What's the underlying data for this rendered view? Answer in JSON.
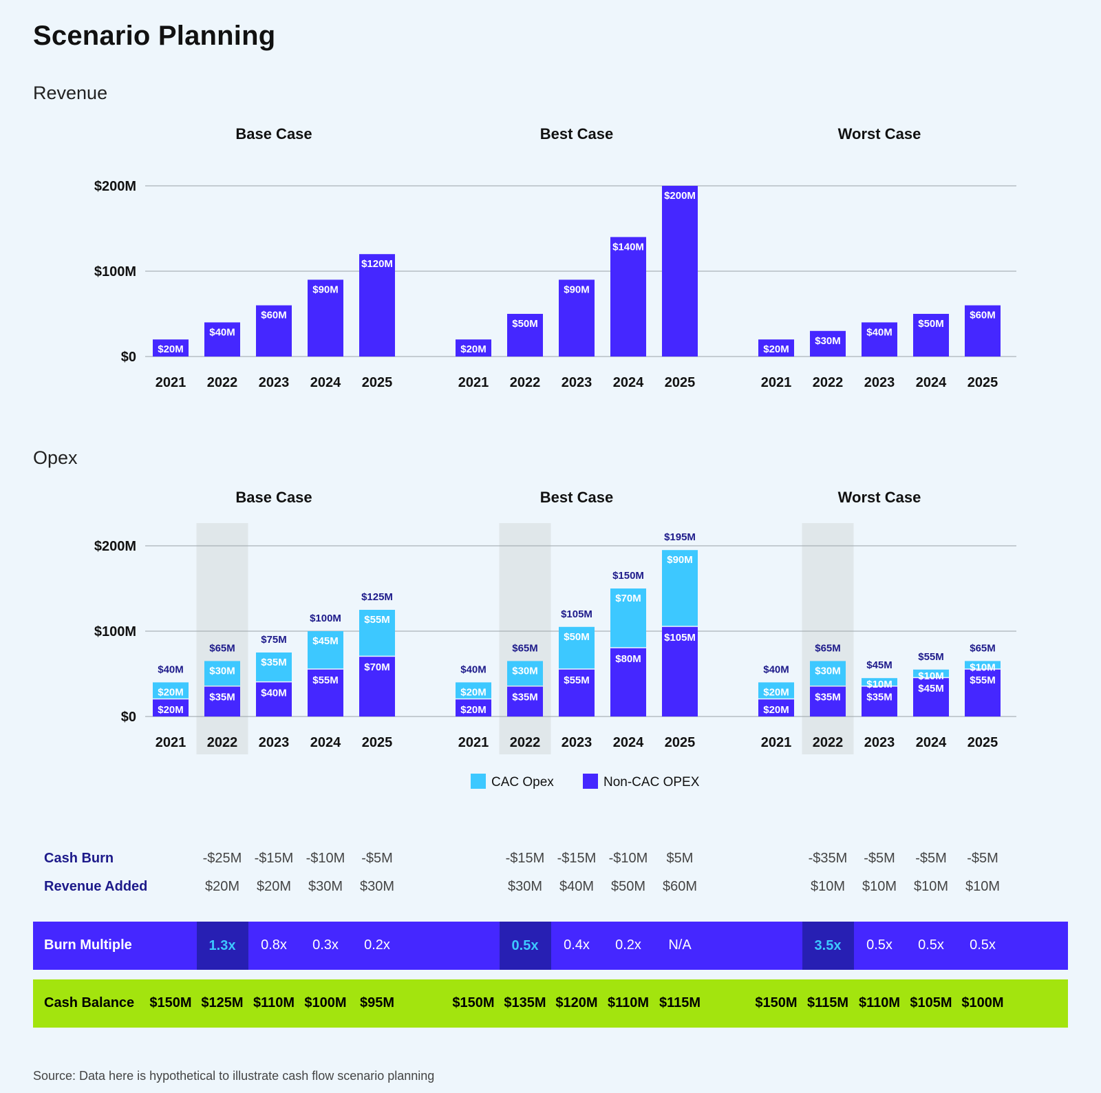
{
  "title": "Scenario Planning",
  "source": "Source: Data here is hypothetical to illustrate cash flow scenario planning",
  "colors": {
    "non_cac": "#4527ff",
    "cac": "#3dc8ff",
    "highlight_col": "#e0e7ea",
    "burn_row": "#4527ff",
    "burn_hl": "#271fb3",
    "balance_row": "#a3e40e"
  },
  "chart_data": [
    {
      "type": "bar",
      "title": "Revenue",
      "y_ticks": [
        "$0",
        "$100M",
        "$200M"
      ],
      "ylim": [
        0,
        200
      ],
      "categories": [
        "2021",
        "2022",
        "2023",
        "2024",
        "2025"
      ],
      "panels": [
        {
          "name": "Base Case",
          "values": [
            20,
            40,
            60,
            90,
            120
          ],
          "labels": [
            "$20M",
            "$40M",
            "$60M",
            "$90M",
            "$120M"
          ]
        },
        {
          "name": "Best Case",
          "values": [
            20,
            50,
            90,
            140,
            200
          ],
          "labels": [
            "$20M",
            "$50M",
            "$90M",
            "$140M",
            "$200M"
          ]
        },
        {
          "name": "Worst Case",
          "values": [
            20,
            30,
            40,
            50,
            60
          ],
          "labels": [
            "$20M",
            "$30M",
            "$40M",
            "$50M",
            "$60M"
          ]
        }
      ]
    },
    {
      "type": "bar",
      "stacked": true,
      "title": "Opex",
      "y_ticks": [
        "$0",
        "$100M",
        "$200M"
      ],
      "ylim": [
        0,
        200
      ],
      "categories": [
        "2021",
        "2022",
        "2023",
        "2024",
        "2025"
      ],
      "highlight_category": "2022",
      "legend": [
        "CAC Opex",
        "Non-CAC OPEX"
      ],
      "panels": [
        {
          "name": "Base Case",
          "non_cac": [
            20,
            35,
            40,
            55,
            70
          ],
          "non_cac_labels": [
            "$20M",
            "$35M",
            "$40M",
            "$55M",
            "$70M"
          ],
          "cac": [
            20,
            30,
            35,
            45,
            55
          ],
          "cac_labels": [
            "$20M",
            "$30M",
            "$35M",
            "$45M",
            "$55M"
          ],
          "totals": [
            "$40M",
            "$65M",
            "$75M",
            "$100M",
            "$125M"
          ]
        },
        {
          "name": "Best Case",
          "non_cac": [
            20,
            35,
            55,
            80,
            105
          ],
          "non_cac_labels": [
            "$20M",
            "$35M",
            "$55M",
            "$80M",
            "$105M"
          ],
          "cac": [
            20,
            30,
            50,
            70,
            90
          ],
          "cac_labels": [
            "$20M",
            "$30M",
            "$50M",
            "$70M",
            "$90M"
          ],
          "totals": [
            "$40M",
            "$65M",
            "$105M",
            "$150M",
            "$195M"
          ]
        },
        {
          "name": "Worst Case",
          "non_cac": [
            20,
            35,
            35,
            45,
            55
          ],
          "non_cac_labels": [
            "$20M",
            "$35M",
            "$35M",
            "$45M",
            "$55M"
          ],
          "cac": [
            20,
            30,
            10,
            10,
            10
          ],
          "cac_labels": [
            "$20M",
            "$30M",
            "$10M",
            "$10M",
            "$10M"
          ],
          "totals": [
            "$40M",
            "$65M",
            "$45M",
            "$55M",
            "$65M"
          ]
        }
      ]
    }
  ],
  "table": {
    "cash_burn": {
      "label": "Cash Burn",
      "values": [
        [
          "-$25M",
          "-$15M",
          "-$10M",
          "-$5M"
        ],
        [
          "-$15M",
          "-$15M",
          "-$10M",
          "$5M"
        ],
        [
          "-$35M",
          "-$5M",
          "-$5M",
          "-$5M"
        ]
      ]
    },
    "revenue_added": {
      "label": "Revenue Added",
      "values": [
        [
          "$20M",
          "$20M",
          "$30M",
          "$30M"
        ],
        [
          "$30M",
          "$40M",
          "$50M",
          "$60M"
        ],
        [
          "$10M",
          "$10M",
          "$10M",
          "$10M"
        ]
      ]
    },
    "burn_multiple": {
      "label": "Burn Multiple",
      "values": [
        [
          "1.3x",
          "0.8x",
          "0.3x",
          "0.2x"
        ],
        [
          "0.5x",
          "0.4x",
          "0.2x",
          "N/A"
        ],
        [
          "3.5x",
          "0.5x",
          "0.5x",
          "0.5x"
        ]
      ]
    },
    "cash_balance": {
      "label": "Cash Balance",
      "values": [
        [
          "$150M",
          "$125M",
          "$110M",
          "$100M",
          "$95M"
        ],
        [
          "$150M",
          "$135M",
          "$120M",
          "$110M",
          "$115M"
        ],
        [
          "$150M",
          "$115M",
          "$110M",
          "$105M",
          "$100M"
        ]
      ]
    }
  }
}
